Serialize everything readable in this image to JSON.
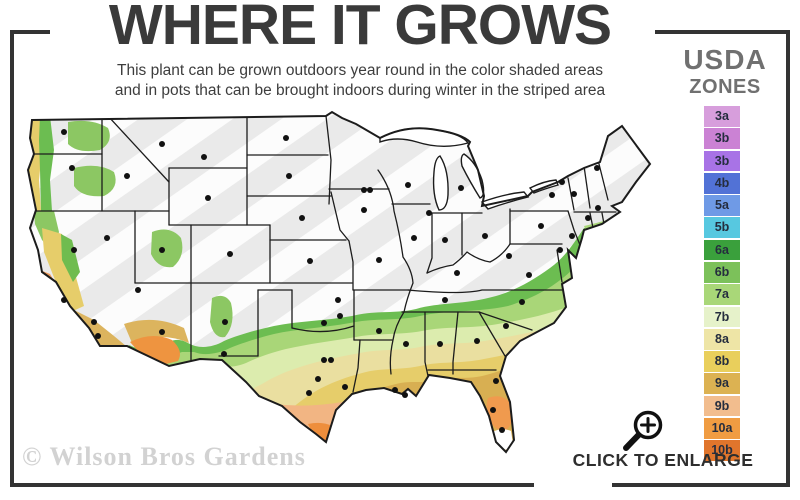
{
  "header": {
    "title": "WHERE IT GROWS",
    "subtitle1": "This plant can be grown outdoors year round in the color shaded areas",
    "subtitle2": "and in pots that can be brought indoors during winter in the striped area"
  },
  "legend": {
    "title1": "USDA",
    "title2": "ZONES",
    "zones": [
      {
        "label": "3a",
        "color": "#d79edc"
      },
      {
        "label": "3b",
        "color": "#cb82d4"
      },
      {
        "label": "3b",
        "color": "#a873e6"
      },
      {
        "label": "4b",
        "color": "#5272d6"
      },
      {
        "label": "5a",
        "color": "#6f9ae6"
      },
      {
        "label": "5b",
        "color": "#57c8e0"
      },
      {
        "label": "6a",
        "color": "#3aa03c"
      },
      {
        "label": "6b",
        "color": "#7cc15a"
      },
      {
        "label": "7a",
        "color": "#a9d778"
      },
      {
        "label": "7b",
        "color": "#e6f2ca"
      },
      {
        "label": "8a",
        "color": "#eee5a6"
      },
      {
        "label": "8b",
        "color": "#e9cf5c"
      },
      {
        "label": "9a",
        "color": "#dcb252"
      },
      {
        "label": "9b",
        "color": "#f2bd8e"
      },
      {
        "label": "10a",
        "color": "#f09c42"
      },
      {
        "label": "10b",
        "color": "#e0752c"
      }
    ]
  },
  "map": {
    "colors": {
      "base": "#eaeaea",
      "stripe": "#ffffff",
      "line": "#1c1c1c",
      "dot": "#111111",
      "lake": "#ffffff",
      "band_green": "#6cbd51",
      "band_light_green": "#a9d678",
      "band_pale_green": "#dcecae",
      "band_pale_yellow": "#eadfa0",
      "band_yellow": "#e6cd6a",
      "band_gold": "#d8af52",
      "peach": "#f2b583",
      "orange": "#ee8e3c",
      "fl_orange": "#f09a4e",
      "white_tip": "#ffffff",
      "patch_green": "#8cc763",
      "sierra_green": "#6fbc4f",
      "coast_orange": "#ef9a5a",
      "desert_tan": "#dcb45e",
      "az_orange": "#ee9440"
    },
    "city_dots": [
      [
        52,
        22
      ],
      [
        60,
        58
      ],
      [
        115,
        66
      ],
      [
        150,
        34
      ],
      [
        192,
        47
      ],
      [
        196,
        88
      ],
      [
        126,
        180
      ],
      [
        95,
        128
      ],
      [
        150,
        140
      ],
      [
        218,
        144
      ],
      [
        213,
        212
      ],
      [
        150,
        222
      ],
      [
        274,
        28
      ],
      [
        277,
        66
      ],
      [
        290,
        108
      ],
      [
        298,
        151
      ],
      [
        326,
        190
      ],
      [
        312,
        213
      ],
      [
        328,
        206
      ],
      [
        312,
        250
      ],
      [
        319,
        250
      ],
      [
        306,
        269
      ],
      [
        297,
        283
      ],
      [
        333,
        277
      ],
      [
        212,
        244
      ],
      [
        352,
        80
      ],
      [
        358,
        80
      ],
      [
        352,
        100
      ],
      [
        367,
        150
      ],
      [
        367,
        221
      ],
      [
        383,
        280
      ],
      [
        393,
        285
      ],
      [
        396,
        75
      ],
      [
        402,
        128
      ],
      [
        417,
        103
      ],
      [
        433,
        130
      ],
      [
        449,
        78
      ],
      [
        473,
        126
      ],
      [
        445,
        163
      ],
      [
        433,
        190
      ],
      [
        394,
        234
      ],
      [
        428,
        234
      ],
      [
        465,
        231
      ],
      [
        494,
        216
      ],
      [
        510,
        192
      ],
      [
        517,
        165
      ],
      [
        497,
        146
      ],
      [
        529,
        116
      ],
      [
        540,
        85
      ],
      [
        550,
        72
      ],
      [
        562,
        84
      ],
      [
        585,
        58
      ],
      [
        586,
        98
      ],
      [
        576,
        108
      ],
      [
        560,
        126
      ],
      [
        548,
        140
      ],
      [
        484,
        271
      ],
      [
        481,
        300
      ],
      [
        490,
        320
      ],
      [
        82,
        212
      ],
      [
        86,
        226
      ],
      [
        52,
        190
      ],
      [
        62,
        140
      ]
    ]
  },
  "footer": {
    "watermark": "© Wilson Bros Gardens",
    "cta": "CLICK TO ENLARGE"
  }
}
